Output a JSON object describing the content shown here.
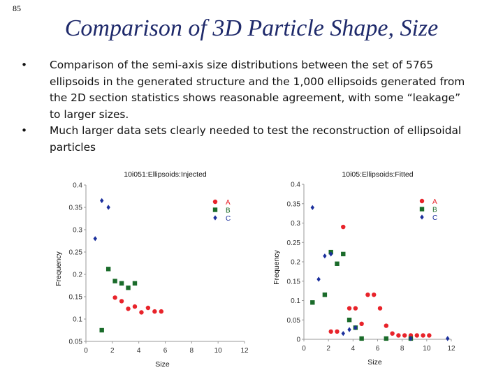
{
  "slide": {
    "number": "85",
    "title": "Comparison of 3D Particle Shape, Size",
    "bullets": [
      "Comparison of the semi-axis size distributions between the set of 5765 ellipsoids in the generated structure and the 1,000 ellipsoids generated from the 2D section statistics shows reasonable agreement, with some “leakage” to larger sizes.",
      "Much larger data sets clearly needed to test the reconstruction of ellipsoidal particles"
    ],
    "bullet_glyph": "•"
  },
  "chart_data": [
    {
      "type": "scatter",
      "title": "10i051:Ellipsoids:Injected",
      "xlabel": "Size",
      "ylabel": "Frequency",
      "xlim": [
        0,
        12
      ],
      "ylim": [
        0.05,
        0.4
      ],
      "xticks": [
        "0",
        "2",
        "4",
        "6",
        "8",
        "10",
        "12"
      ],
      "yticks": [
        "0.05",
        "0.1",
        "0.15",
        "0.2",
        "0.25",
        "0.3",
        "0.35",
        "0.4"
      ],
      "legend_position": "top-right",
      "series": [
        {
          "name": "A",
          "marker": "circle",
          "color": "#e8232a",
          "x": [
            2.2,
            2.7,
            3.2,
            3.7,
            4.2,
            4.7,
            5.2,
            5.7
          ],
          "y": [
            0.148,
            0.14,
            0.123,
            0.128,
            0.115,
            0.125,
            0.117,
            0.117
          ]
        },
        {
          "name": "B",
          "marker": "square",
          "color": "#1a6b2a",
          "x": [
            1.2,
            1.7,
            2.2,
            2.7,
            3.2,
            3.7
          ],
          "y": [
            0.075,
            0.212,
            0.185,
            0.18,
            0.17,
            0.18
          ]
        },
        {
          "name": "C",
          "marker": "diamond",
          "color": "#1b2f9c",
          "x": [
            0.7,
            1.2,
            1.7
          ],
          "y": [
            0.28,
            0.365,
            0.35
          ]
        }
      ]
    },
    {
      "type": "scatter",
      "title": "10i05:Ellipsoids:Fitted",
      "xlabel": "Size",
      "ylabel": "Frequency",
      "xlim": [
        0,
        12
      ],
      "ylim": [
        0,
        0.4
      ],
      "xticks": [
        "0",
        "2",
        "4",
        "6",
        "8",
        "10",
        "12"
      ],
      "yticks": [
        "0",
        "0.05",
        "0.1",
        "0.15",
        "0.2",
        "0.25",
        "0.3",
        "0.35",
        "0.4"
      ],
      "legend_position": "top-right",
      "series": [
        {
          "name": "A",
          "marker": "circle",
          "color": "#e8232a",
          "x": [
            2.2,
            2.7,
            3.2,
            3.7,
            4.2,
            4.7,
            5.2,
            5.7,
            6.2,
            6.7,
            7.2,
            7.7,
            8.2,
            8.7,
            9.2,
            9.7,
            10.2
          ],
          "y": [
            0.02,
            0.02,
            0.29,
            0.08,
            0.08,
            0.04,
            0.115,
            0.115,
            0.08,
            0.035,
            0.015,
            0.01,
            0.01,
            0.01,
            0.01,
            0.01,
            0.01
          ]
        },
        {
          "name": "B",
          "marker": "square",
          "color": "#1a6b2a",
          "x": [
            0.7,
            1.7,
            2.2,
            2.7,
            3.2,
            3.7,
            4.2,
            4.7,
            6.7,
            8.7
          ],
          "y": [
            0.095,
            0.115,
            0.225,
            0.195,
            0.22,
            0.05,
            0.03,
            0.002,
            0.002,
            0.002
          ]
        },
        {
          "name": "C",
          "marker": "diamond",
          "color": "#1b2f9c",
          "x": [
            0.7,
            1.2,
            1.7,
            2.2,
            3.2,
            3.7,
            4.2,
            8.7,
            11.7
          ],
          "y": [
            0.34,
            0.155,
            0.215,
            0.22,
            0.015,
            0.025,
            0.03,
            0.002,
            0.002
          ]
        }
      ]
    }
  ]
}
